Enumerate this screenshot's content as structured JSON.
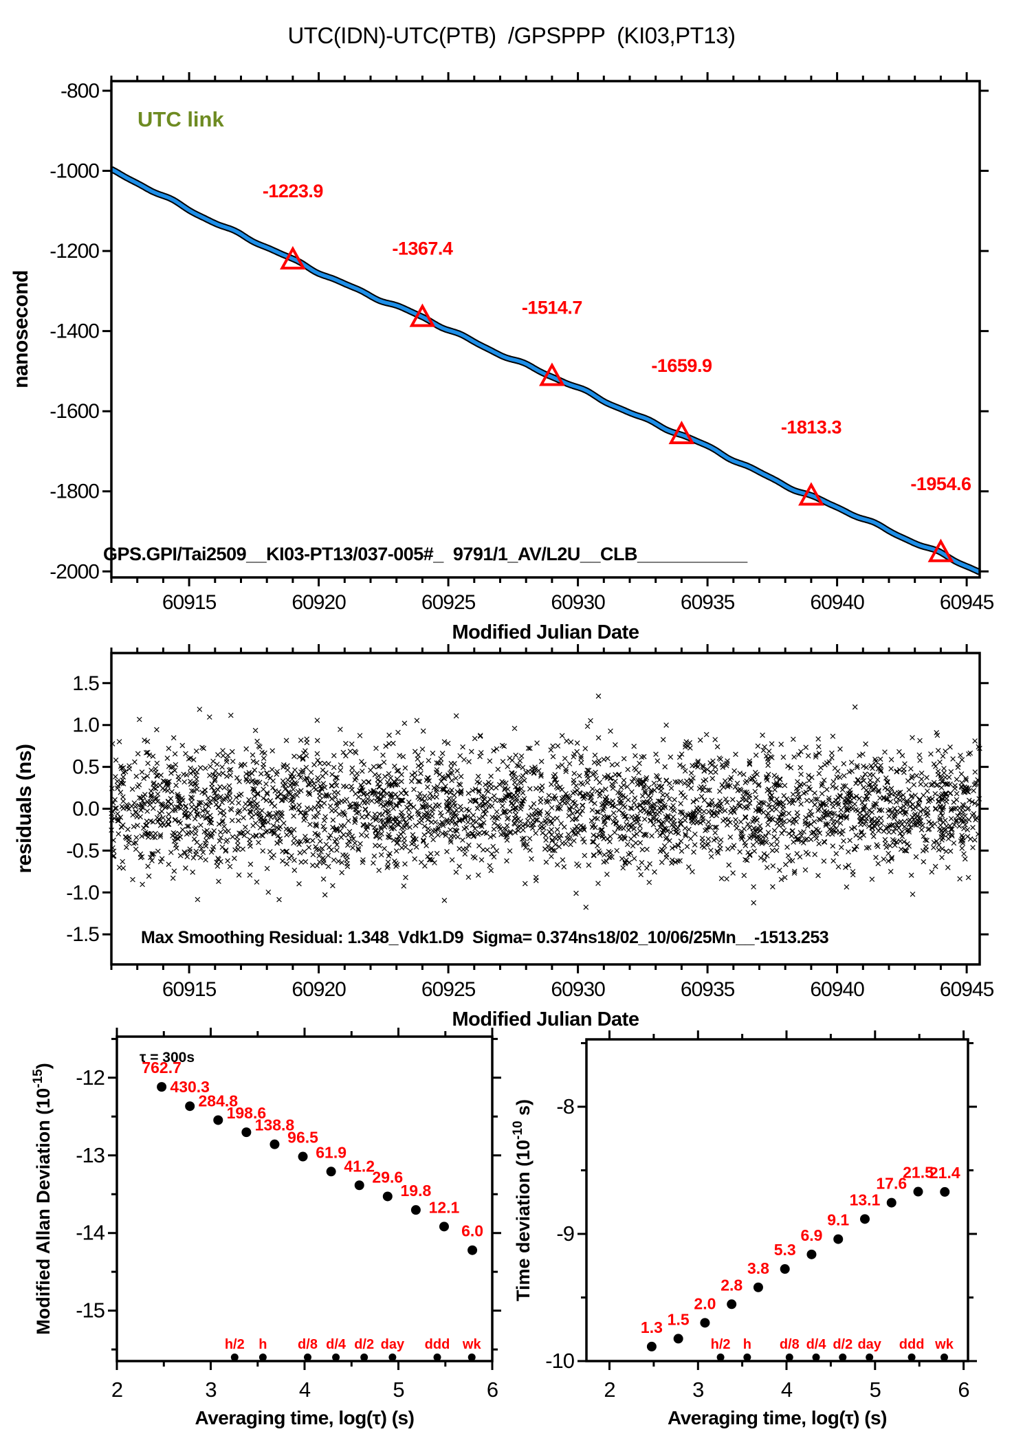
{
  "page": {
    "title": "UTC(IDN)-UTC(PTB)  /GPSPPP  (KI03,PT13)"
  },
  "colors": {
    "ink": "#000000",
    "line_blue": "#1e8fe8",
    "accent_red": "#ff0000",
    "link_green": "#6e8b22",
    "background": "#ffffff"
  },
  "chart_data": [
    {
      "id": "utc_link",
      "type": "line",
      "title": "UTC(IDN)-UTC(PTB)  /GPSPPP  (KI03,PT13)",
      "legend": "UTC link",
      "xlabel": "Modified Julian Date",
      "ylabel": "nanosecond",
      "xlim": [
        60912,
        60945.5
      ],
      "ylim": [
        -2015,
        -776
      ],
      "xticks": [
        60915,
        60920,
        60925,
        60930,
        60935,
        60940,
        60945
      ],
      "xtick_labels": [
        "60915",
        "60920",
        "60925",
        "60930",
        "60935",
        "60940",
        "60945"
      ],
      "x_minor_step": 1,
      "yticks": [
        -800,
        -1000,
        -1200,
        -1400,
        -1600,
        -1800,
        -2000
      ],
      "ytick_labels": [
        "-800",
        "-1000",
        "-1200",
        "-1400",
        "-1600",
        "-1800",
        "-2000"
      ],
      "line_anchors": [
        [
          60912,
          -1000
        ],
        [
          60919,
          -1223.9
        ],
        [
          60924,
          -1367.4
        ],
        [
          60929,
          -1514.7
        ],
        [
          60934,
          -1659.9
        ],
        [
          60939,
          -1813.3
        ],
        [
          60944,
          -1954.6
        ],
        [
          60945.5,
          -2003
        ]
      ],
      "calibration_points": [
        {
          "mjd": 60919,
          "ns": -1223.9,
          "label": "-1223.9"
        },
        {
          "mjd": 60924,
          "ns": -1367.4,
          "label": "-1367.4"
        },
        {
          "mjd": 60929,
          "ns": -1514.7,
          "label": "-1514.7"
        },
        {
          "mjd": 60934,
          "ns": -1659.9,
          "label": "-1659.9"
        },
        {
          "mjd": 60939,
          "ns": -1813.3,
          "label": "-1813.3"
        },
        {
          "mjd": 60944,
          "ns": -1954.6,
          "label": "-1954.6"
        }
      ],
      "footer": "GPS.GPI/Tai2509__KI03-PT13/037-005#_  9791/1_AV/L2U__CLB___________"
    },
    {
      "id": "residuals",
      "type": "scatter",
      "xlabel": "Modified Julian Date",
      "ylabel": "residuals (ns)",
      "xlim": [
        60912,
        60945.5
      ],
      "ylim": [
        -1.86,
        1.86
      ],
      "xticks": [
        60915,
        60920,
        60925,
        60930,
        60935,
        60940,
        60945
      ],
      "xtick_labels": [
        "60915",
        "60920",
        "60925",
        "60930",
        "60935",
        "60940",
        "60945"
      ],
      "x_minor_step": 1,
      "yticks": [
        1.5,
        1.0,
        0.5,
        0.0,
        -0.5,
        -1.0,
        -1.5
      ],
      "ytick_labels": [
        "1.5",
        "1.0",
        "0.5",
        "0.0",
        "-0.5",
        "-1.0",
        "-1.5"
      ],
      "sigma_ns": 0.374,
      "clip_ns": 1.45,
      "point_count_hint": 3200,
      "marker": "x",
      "annotation": "Max Smoothing Residual: 1.348_Vdk1.D9  Sigma= 0.374ns18/02_10/06/25Mn__-1513.253"
    },
    {
      "id": "mdev",
      "type": "scatter",
      "xlabel": "Averaging time, log(τ) (s)",
      "ylabel_parts": {
        "pre": "Modified Allan Deviation (10",
        "sup": "-15",
        "post": ")"
      },
      "note": "τ = 300s",
      "value_exponent": -15,
      "xlim": [
        2,
        6
      ],
      "ylim": [
        -15.65,
        -11.47
      ],
      "xticks": [
        2,
        3,
        4,
        5,
        6
      ],
      "xtick_labels": [
        "2",
        "3",
        "4",
        "5",
        "6"
      ],
      "x_minor_step": 0.5,
      "yticks": [
        -12,
        -13,
        -14,
        -15
      ],
      "ytick_labels": [
        "-12",
        "-13",
        "-14",
        "-15"
      ],
      "y_minor_step": 0.5,
      "points": [
        {
          "tau_s": 300,
          "log_tau": 2.477,
          "value": 762.7,
          "label": "762.7"
        },
        {
          "tau_s": 600,
          "log_tau": 2.778,
          "value": 430.3,
          "label": "430.3"
        },
        {
          "tau_s": 1200,
          "log_tau": 3.079,
          "value": 284.8,
          "label": "284.8"
        },
        {
          "tau_s": 2400,
          "log_tau": 3.38,
          "value": 198.6,
          "label": "198.6"
        },
        {
          "tau_s": 4800,
          "log_tau": 3.681,
          "value": 138.8,
          "label": "138.8"
        },
        {
          "tau_s": 9600,
          "log_tau": 3.982,
          "value": 96.5,
          "label": "96.5"
        },
        {
          "tau_s": 19200,
          "log_tau": 4.283,
          "value": 61.9,
          "label": "61.9"
        },
        {
          "tau_s": 38400,
          "log_tau": 4.584,
          "value": 41.2,
          "label": "41.2"
        },
        {
          "tau_s": 76800,
          "log_tau": 4.885,
          "value": 29.6,
          "label": "29.6"
        },
        {
          "tau_s": 153600,
          "log_tau": 5.186,
          "value": 19.8,
          "label": "19.8"
        },
        {
          "tau_s": 307200,
          "log_tau": 5.487,
          "value": 12.1,
          "label": "12.1"
        },
        {
          "tau_s": 614400,
          "log_tau": 5.788,
          "value": 6.0,
          "label": "6.0"
        }
      ],
      "tau_markers": [
        {
          "label": "h/2",
          "tau_s": 1800,
          "log_tau": 3.255
        },
        {
          "label": "h",
          "tau_s": 3600,
          "log_tau": 3.556
        },
        {
          "label": "d/8",
          "tau_s": 10800,
          "log_tau": 4.033
        },
        {
          "label": "d/4",
          "tau_s": 21600,
          "log_tau": 4.334
        },
        {
          "label": "d/2",
          "tau_s": 43200,
          "log_tau": 4.635
        },
        {
          "label": "day",
          "tau_s": 86400,
          "log_tau": 4.937
        },
        {
          "label": "ddd",
          "tau_s": 259200,
          "log_tau": 5.414
        },
        {
          "label": "wk",
          "tau_s": 604800,
          "log_tau": 5.782
        }
      ]
    },
    {
      "id": "tdev",
      "type": "scatter",
      "xlabel": "Averaging time, log(τ) (s)",
      "ylabel_parts": {
        "pre": "Time deviation (10",
        "sup": "-10",
        "post": " s)"
      },
      "value_exponent": -10,
      "xlim": [
        1.74,
        6.05
      ],
      "ylim": [
        -10,
        -7.47
      ],
      "xticks": [
        2,
        3,
        4,
        5,
        6
      ],
      "xtick_labels": [
        "2",
        "3",
        "4",
        "5",
        "6"
      ],
      "x_minor_step": 0.5,
      "yticks": [
        -8,
        -9,
        -10
      ],
      "ytick_labels": [
        "-8",
        "-9",
        "-10"
      ],
      "y_minor_step": 0.5,
      "points": [
        {
          "tau_s": 300,
          "log_tau": 2.477,
          "value": 1.3,
          "label": "1.3"
        },
        {
          "tau_s": 600,
          "log_tau": 2.778,
          "value": 1.5,
          "label": "1.5"
        },
        {
          "tau_s": 1200,
          "log_tau": 3.079,
          "value": 2.0,
          "label": "2.0"
        },
        {
          "tau_s": 2400,
          "log_tau": 3.38,
          "value": 2.8,
          "label": "2.8"
        },
        {
          "tau_s": 4800,
          "log_tau": 3.681,
          "value": 3.8,
          "label": "3.8"
        },
        {
          "tau_s": 9600,
          "log_tau": 3.982,
          "value": 5.3,
          "label": "5.3"
        },
        {
          "tau_s": 19200,
          "log_tau": 4.283,
          "value": 6.9,
          "label": "6.9"
        },
        {
          "tau_s": 38400,
          "log_tau": 4.584,
          "value": 9.1,
          "label": "9.1"
        },
        {
          "tau_s": 76800,
          "log_tau": 4.885,
          "value": 13.1,
          "label": "13.1"
        },
        {
          "tau_s": 153600,
          "log_tau": 5.186,
          "value": 17.6,
          "label": "17.6"
        },
        {
          "tau_s": 307200,
          "log_tau": 5.487,
          "value": 21.5,
          "label": "21.5"
        },
        {
          "tau_s": 614400,
          "log_tau": 5.788,
          "value": 21.4,
          "label": "21.4"
        }
      ],
      "tau_markers": [
        {
          "label": "h/2",
          "tau_s": 1800,
          "log_tau": 3.255
        },
        {
          "label": "h",
          "tau_s": 3600,
          "log_tau": 3.556
        },
        {
          "label": "d/8",
          "tau_s": 10800,
          "log_tau": 4.033
        },
        {
          "label": "d/4",
          "tau_s": 21600,
          "log_tau": 4.334
        },
        {
          "label": "d/2",
          "tau_s": 43200,
          "log_tau": 4.635
        },
        {
          "label": "day",
          "tau_s": 86400,
          "log_tau": 4.937
        },
        {
          "label": "ddd",
          "tau_s": 259200,
          "log_tau": 5.414
        },
        {
          "label": "wk",
          "tau_s": 604800,
          "log_tau": 5.782
        }
      ]
    }
  ]
}
